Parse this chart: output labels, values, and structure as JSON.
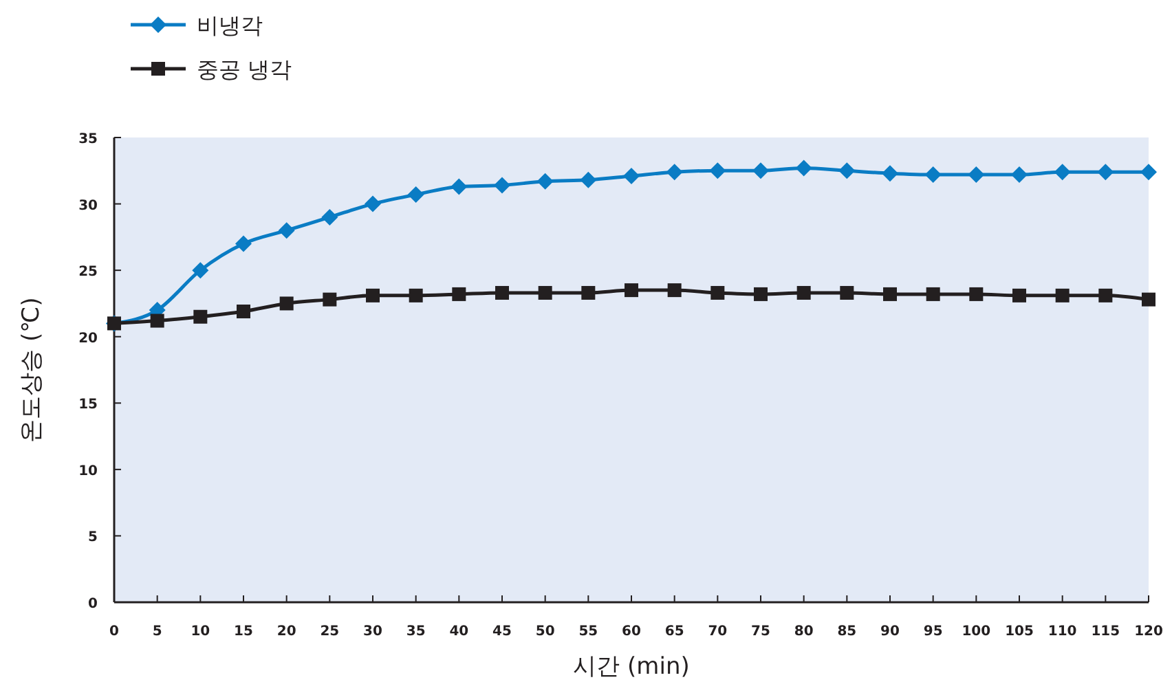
{
  "chart_data": {
    "type": "line",
    "xlabel": "시간 (min)",
    "ylabel": "온도상승 (℃)",
    "x": [
      0,
      5,
      10,
      15,
      20,
      25,
      30,
      35,
      40,
      45,
      50,
      55,
      60,
      65,
      70,
      75,
      80,
      85,
      90,
      95,
      100,
      105,
      110,
      115,
      120
    ],
    "series": [
      {
        "name": "비냉각",
        "color": "#0a7cc4",
        "marker": "diamond",
        "values": [
          21,
          22,
          25,
          27,
          28,
          29,
          30,
          30.7,
          31.3,
          31.4,
          31.7,
          31.8,
          32.1,
          32.4,
          32.5,
          32.5,
          32.7,
          32.5,
          32.3,
          32.2,
          32.2,
          32.2,
          32.4,
          32.4,
          32.4
        ]
      },
      {
        "name": "중공 냉각",
        "color": "#231f20",
        "marker": "square",
        "values": [
          21,
          21.2,
          21.5,
          21.9,
          22.5,
          22.8,
          23.1,
          23.1,
          23.2,
          23.3,
          23.3,
          23.3,
          23.5,
          23.5,
          23.3,
          23.2,
          23.3,
          23.3,
          23.2,
          23.2,
          23.2,
          23.1,
          23.1,
          23.1,
          22.8
        ]
      }
    ],
    "xlim": [
      0,
      120
    ],
    "xticks": [
      0,
      5,
      10,
      15,
      20,
      25,
      30,
      35,
      40,
      45,
      50,
      55,
      60,
      65,
      70,
      75,
      80,
      85,
      90,
      95,
      100,
      105,
      110,
      115,
      120
    ],
    "ylim": [
      0,
      35
    ],
    "yticks": [
      0,
      5,
      10,
      15,
      20,
      25,
      30,
      35
    ],
    "grid": false,
    "legend": "top left"
  }
}
